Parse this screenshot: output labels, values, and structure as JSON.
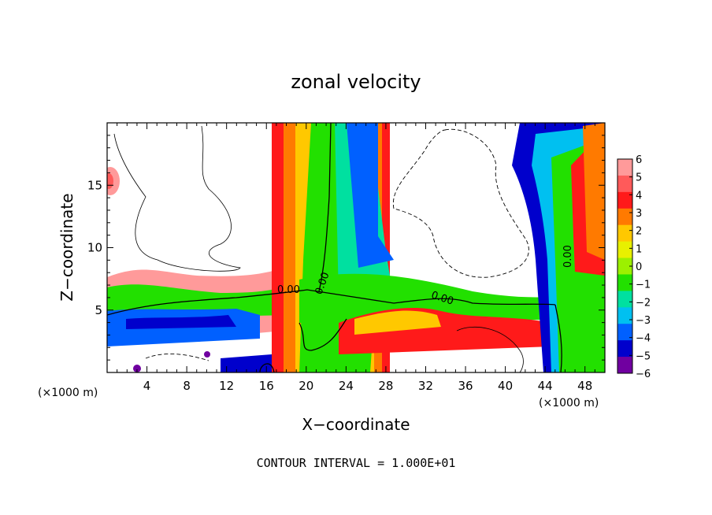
{
  "chart_data": {
    "type": "heatmap",
    "title": "zonal velocity",
    "xlabel": "X−coordinate",
    "ylabel": "Z−coordinate",
    "x_unit_left": "(×1000 m)",
    "x_unit_right": "(×1000 m)",
    "xlim": [
      0,
      50
    ],
    "ylim": [
      0,
      20
    ],
    "x_ticks": [
      "4",
      "8",
      "12",
      "16",
      "20",
      "24",
      "28",
      "32",
      "36",
      "40",
      "44",
      "48"
    ],
    "y_ticks": [
      "5",
      "10",
      "15"
    ],
    "colorbar": {
      "min": -6,
      "max": 6,
      "labels": [
        "6",
        "5",
        "4",
        "3",
        "2",
        "1",
        "0",
        "−1",
        "−2",
        "−3",
        "−4",
        "−5",
        "−6"
      ],
      "colors": [
        "#ff9a9a",
        "#ff5a5a",
        "#ff1a1a",
        "#ff7a00",
        "#ffc800",
        "#e8f000",
        "#9cf000",
        "#22e000",
        "#00e0a0",
        "#00c0f0",
        "#0060ff",
        "#0000cc",
        "#7000a0"
      ]
    },
    "contour_labels": [
      "0.00",
      "0.00",
      "0.00",
      "0.00"
    ],
    "contour_interval_text": "CONTOUR INTERVAL = 1.000E+01"
  }
}
